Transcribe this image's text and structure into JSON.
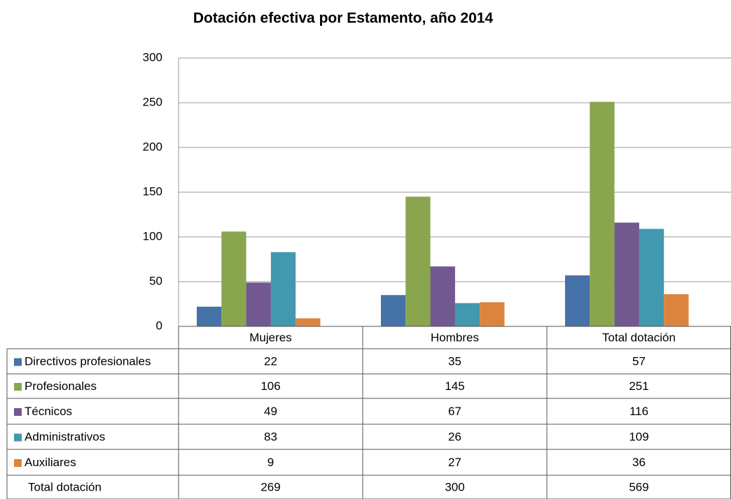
{
  "chart_data": {
    "type": "bar",
    "title": "Dotación efectiva por Estamento, año 2014",
    "categories": [
      "Mujeres",
      "Hombres",
      "Total dotación"
    ],
    "series": [
      {
        "name": "Directivos profesionales",
        "color": "#4572a7",
        "values": [
          22,
          35,
          57
        ]
      },
      {
        "name": "Profesionales",
        "color": "#89a54e",
        "values": [
          106,
          145,
          251
        ]
      },
      {
        "name": "Técnicos",
        "color": "#71588f",
        "values": [
          49,
          67,
          116
        ]
      },
      {
        "name": "Administrativos",
        "color": "#4198af",
        "values": [
          83,
          26,
          109
        ]
      },
      {
        "name": "Auxiliares",
        "color": "#db843d",
        "values": [
          9,
          27,
          36
        ]
      }
    ],
    "totals": {
      "name": "Total dotación",
      "values": [
        269,
        300,
        569
      ]
    },
    "ylim": [
      0,
      300
    ],
    "yticks": [
      0,
      50,
      100,
      150,
      200,
      250,
      300
    ],
    "grid": true
  }
}
